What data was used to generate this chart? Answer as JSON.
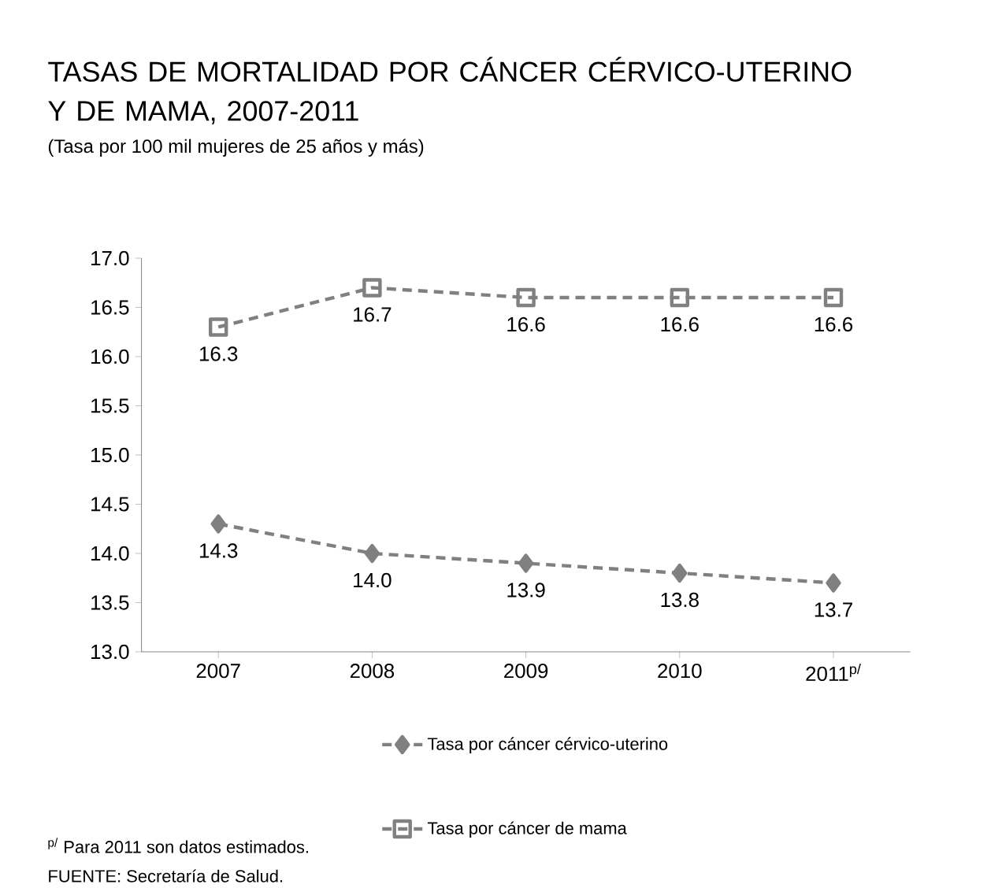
{
  "chart_data": {
    "type": "line",
    "title": "TASAS DE MORTALIDAD POR CÁNCER CÉRVICO-UTERINO Y DE MAMA, 2007-2011",
    "subtitle": "(Tasa por 100 mil mujeres de 25 años y más)",
    "categories": [
      "2007",
      "2008",
      "2009",
      "2010",
      "2011$^{p/}$"
    ],
    "series": [
      {
        "name": "Tasa por cáncer cérvico-uterino",
        "color": "#808080",
        "marker": "diamond",
        "values": [
          14.3,
          14.0,
          13.9,
          13.8,
          13.7
        ],
        "value_labels": [
          "14.3",
          "14.0",
          "13.9",
          "13.8",
          "13.7"
        ]
      },
      {
        "name": "Tasa por cáncer de mama",
        "color": "#808080",
        "marker": "square",
        "values": [
          16.3,
          16.7,
          16.6,
          16.6,
          16.6
        ],
        "value_labels": [
          "16.3",
          "16.7",
          "16.6",
          "16.6",
          "16.6"
        ]
      }
    ],
    "ylim": [
      13.0,
      17.0
    ],
    "yticks": [
      {
        "value": 13.0,
        "label": "13.0"
      },
      {
        "value": 13.5,
        "label": "13.5"
      },
      {
        "value": 14.0,
        "label": "14.0"
      },
      {
        "value": 14.5,
        "label": "14.5"
      },
      {
        "value": 15.0,
        "label": "15.0"
      },
      {
        "value": 15.5,
        "label": "15.5"
      },
      {
        "value": 16.0,
        "label": "16.0"
      },
      {
        "value": 16.5,
        "label": "16.5"
      },
      {
        "value": 17.0,
        "label": "17.0"
      }
    ],
    "line_style": "dashed",
    "legend": "bottom",
    "grid": false,
    "annotations": [
      "$^{p/}$ Para 2011 son datos estimados.",
      "FUENTE: Secretaría de Salud."
    ]
  }
}
